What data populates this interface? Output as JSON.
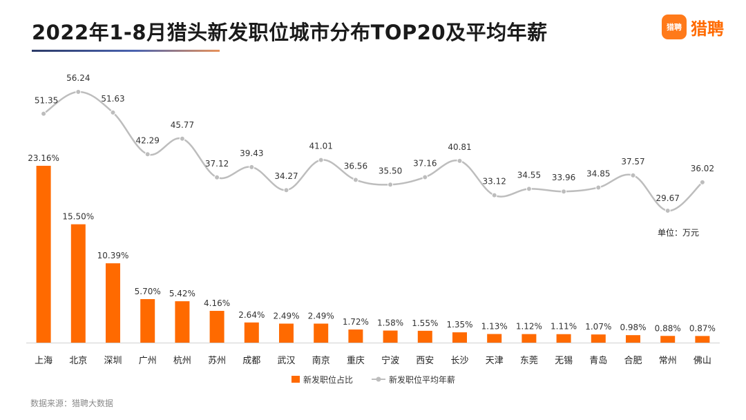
{
  "header": {
    "title": "2022年1-8月猎头新发职位城市分布TOP20及平均年薪",
    "logo_badge": "猎聘",
    "logo_text": "猎聘"
  },
  "footer": {
    "source": "数据来源：猎聘大数据"
  },
  "colors": {
    "bar": "#ff6a00",
    "line": "#bdbdbd",
    "marker": "#bdbdbd"
  },
  "chart_data": {
    "type": "bar+line",
    "title": "2022年1-8月猎头新发职位城市分布TOP20及平均年薪",
    "categories": [
      "上海",
      "北京",
      "深圳",
      "广州",
      "杭州",
      "苏州",
      "成都",
      "武汉",
      "南京",
      "重庆",
      "宁波",
      "西安",
      "长沙",
      "天津",
      "东莞",
      "无锡",
      "青岛",
      "合肥",
      "常州",
      "佛山"
    ],
    "series": [
      {
        "name": "新发职位占比",
        "type": "bar",
        "values": [
          23.16,
          15.5,
          10.39,
          5.7,
          5.42,
          4.16,
          2.64,
          2.49,
          2.49,
          1.72,
          1.58,
          1.55,
          1.35,
          1.13,
          1.12,
          1.11,
          1.07,
          0.98,
          0.88,
          0.87
        ],
        "labels": [
          "23.16%",
          "15.50%",
          "10.39%",
          "5.70%",
          "5.42%",
          "4.16%",
          "2.64%",
          "2.49%",
          "2.49%",
          "1.72%",
          "1.58%",
          "1.55%",
          "1.35%",
          "1.13%",
          "1.12%",
          "1.11%",
          "1.07%",
          "0.98%",
          "0.88%",
          "0.87%"
        ]
      },
      {
        "name": "新发职位平均年薪",
        "type": "line",
        "values": [
          51.35,
          56.24,
          51.63,
          42.29,
          45.77,
          37.12,
          39.43,
          34.27,
          41.01,
          36.56,
          35.5,
          37.16,
          40.81,
          33.12,
          34.55,
          33.96,
          34.85,
          37.57,
          29.67,
          36.02
        ],
        "labels": [
          "51.35",
          "56.24",
          "51.63",
          "42.29",
          "45.77",
          "37.12",
          "39.43",
          "34.27",
          "41.01",
          "36.56",
          "35.50",
          "37.16",
          "40.81",
          "33.12",
          "34.55",
          "33.96",
          "34.85",
          "37.57",
          "29.67",
          "36.02"
        ]
      }
    ],
    "unit_note": "单位：万元",
    "legend": [
      "新发职位占比",
      "新发职位平均年薪"
    ],
    "legend_position": "bottom",
    "bar_ylim": [
      0,
      30
    ],
    "line_ylim": [
      -25,
      60
    ]
  }
}
